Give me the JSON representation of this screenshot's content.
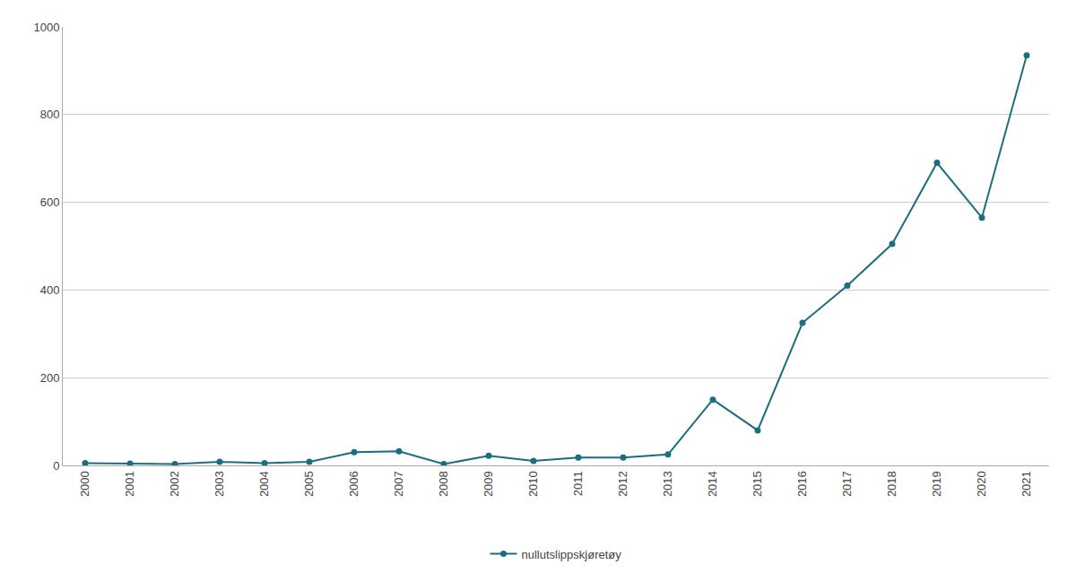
{
  "chart_data": {
    "type": "line",
    "x": [
      2000,
      2001,
      2002,
      2003,
      2004,
      2005,
      2006,
      2007,
      2008,
      2009,
      2010,
      2011,
      2012,
      2013,
      2014,
      2015,
      2016,
      2017,
      2018,
      2019,
      2020,
      2021
    ],
    "series": [
      {
        "name": "nullutslippskjøretøy",
        "color": "#1a6e7e",
        "marker": "circle",
        "values": [
          5,
          4,
          3,
          8,
          5,
          8,
          30,
          32,
          3,
          22,
          10,
          18,
          18,
          25,
          150,
          80,
          325,
          410,
          505,
          690,
          565,
          935
        ]
      }
    ],
    "xlim": [
      1999.5,
      2021.5
    ],
    "xticks": [
      2000,
      2001,
      2002,
      2003,
      2004,
      2005,
      2006,
      2007,
      2008,
      2009,
      2010,
      2011,
      2012,
      2013,
      2014,
      2015,
      2016,
      2017,
      2018,
      2019,
      2020,
      2021
    ],
    "ylim": [
      0,
      1000
    ],
    "yticks": [
      0,
      200,
      400,
      600,
      800,
      1000
    ],
    "grid": "y",
    "legend": "bottom"
  }
}
